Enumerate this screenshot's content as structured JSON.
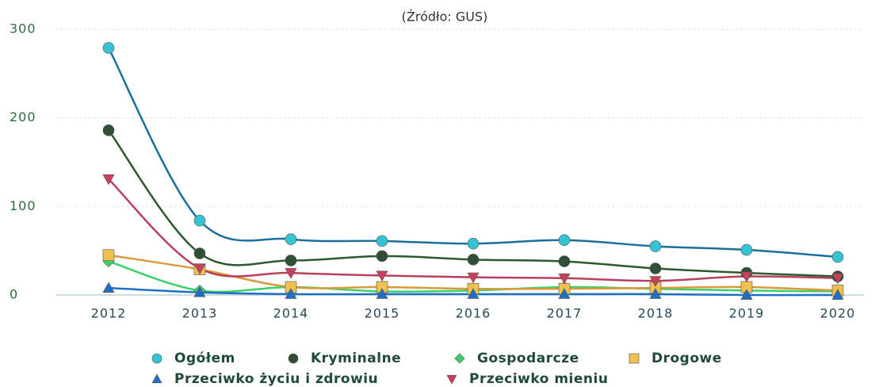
{
  "chart_data": {
    "type": "line",
    "subtitle": "(Źródło: GUS)",
    "categories": [
      "2012",
      "2013",
      "2014",
      "2015",
      "2016",
      "2017",
      "2018",
      "2019",
      "2020"
    ],
    "ylim": [
      0,
      300
    ],
    "yticks": [
      0,
      100,
      200,
      300
    ],
    "grid": true,
    "series": [
      {
        "name": "Ogółem",
        "color": "#1b6f9c",
        "marker_color": "#35c3d3",
        "marker": "circle",
        "values": [
          279,
          84,
          63,
          61,
          58,
          62,
          55,
          51,
          43
        ]
      },
      {
        "name": "Kryminalne",
        "color": "#2b5a2e",
        "marker_color": "#2f4f36",
        "marker": "circle",
        "values": [
          186,
          47,
          39,
          44,
          40,
          38,
          30,
          25,
          21
        ]
      },
      {
        "name": "Gospodarcze",
        "color": "#3bd06a",
        "marker_color": "#3bd06a",
        "marker": "diamond",
        "values": [
          38,
          5,
          9,
          4,
          5,
          9,
          7,
          5,
          4
        ]
      },
      {
        "name": "Drogowe",
        "color": "#d89a3a",
        "marker_color": "#f0c050",
        "marker": "square",
        "values": [
          45,
          29,
          9,
          9,
          7,
          7,
          8,
          9,
          5
        ]
      },
      {
        "name": "Przeciwko życiu i zdrowiu",
        "color": "#1f6fc4",
        "marker_color": "#1f6fc4",
        "marker": "triangle-up",
        "values": [
          8,
          3,
          1,
          1,
          1,
          1,
          1,
          0,
          0
        ]
      },
      {
        "name": "Przeciwko mieniu",
        "color": "#b8405a",
        "marker_color": "#c8405a",
        "marker": "triangle-down",
        "values": [
          131,
          30,
          25,
          22,
          20,
          19,
          16,
          21,
          19
        ]
      }
    ]
  }
}
